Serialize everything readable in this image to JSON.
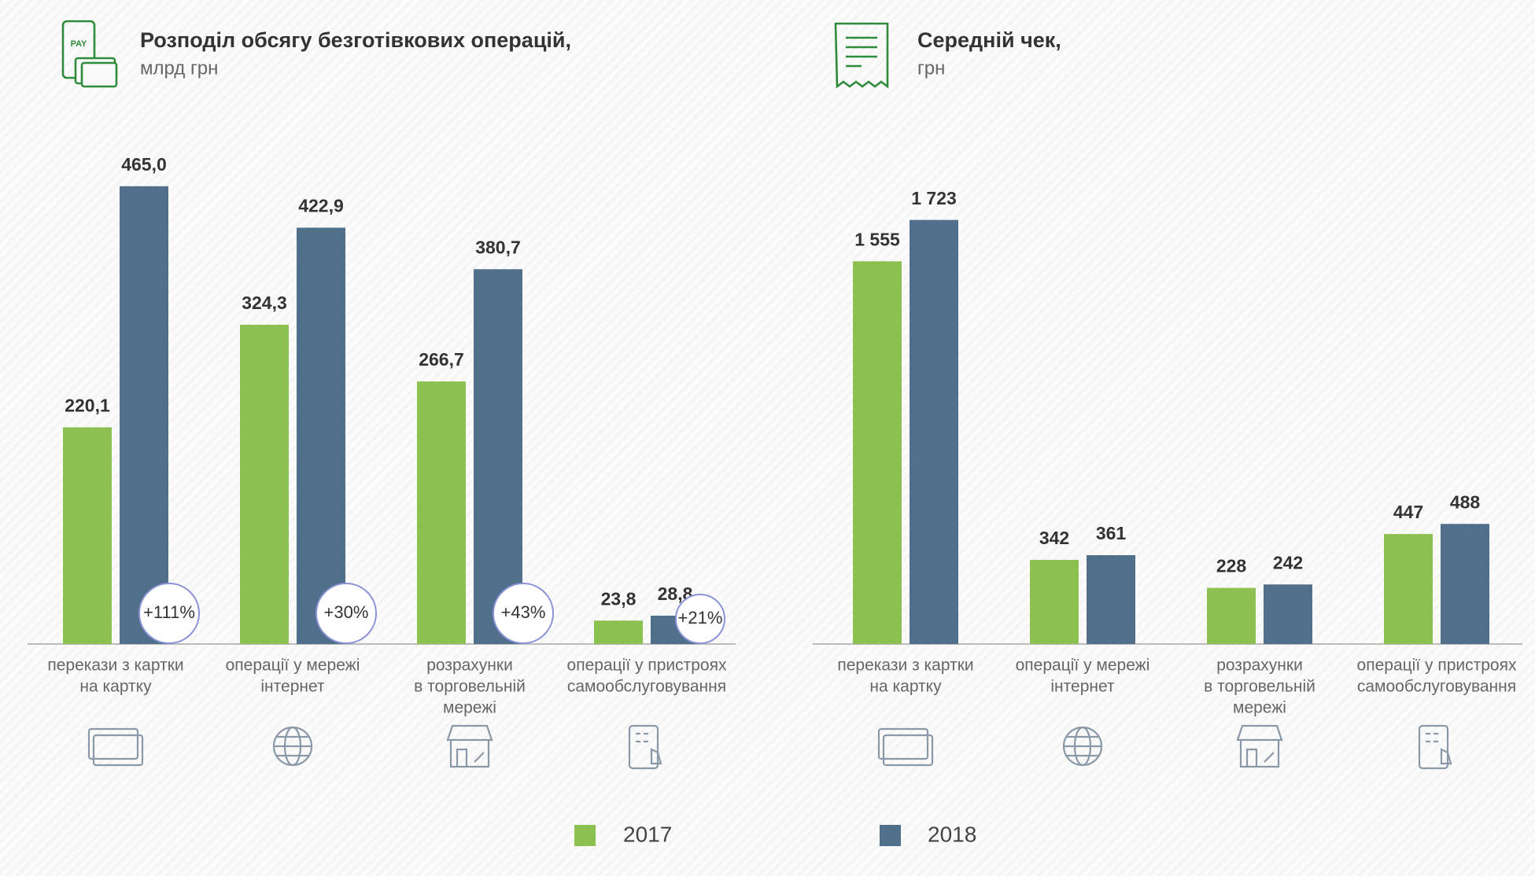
{
  "chart_data": [
    {
      "type": "bar",
      "title": "Розподіл обсягу безготівкових операцій,",
      "subtitle": "млрд грн",
      "categories": [
        [
          "перекази з картки",
          "на картку"
        ],
        [
          "операції у мережі",
          "інтернет"
        ],
        [
          "розрахунки",
          "в торговельній",
          "мережі"
        ],
        [
          "операції у пристроях",
          "самообслуговування"
        ]
      ],
      "series": [
        {
          "name": "2017",
          "color": "#8cc152",
          "values": [
            220.1,
            324.3,
            266.7,
            23.8
          ],
          "value_labels": [
            "220,1",
            "324,3",
            "266,7",
            "23,8"
          ]
        },
        {
          "name": "2018",
          "color": "#4f6f8a",
          "values": [
            465.0,
            422.9,
            380.7,
            28.8
          ],
          "value_labels": [
            "465,0",
            "422,9",
            "380,7",
            "28,8"
          ]
        }
      ],
      "annotations": [
        "+111%",
        "+30%",
        "+43%",
        "+21%"
      ],
      "ylim": [
        0,
        500
      ]
    },
    {
      "type": "bar",
      "title": "Середній чек,",
      "subtitle": "грн",
      "categories": [
        [
          "перекази з картки",
          "на картку"
        ],
        [
          "операції у мережі",
          "інтернет"
        ],
        [
          "розрахунки",
          "в торговельній",
          "мережі"
        ],
        [
          "операції у пристроях",
          "самообслуговування"
        ]
      ],
      "series": [
        {
          "color": "#8cc152",
          "values": [
            1555,
            342,
            228,
            447
          ],
          "value_labels": [
            "1 555",
            "342",
            "228",
            "447"
          ]
        },
        {
          "color": "#4f6f8a",
          "values": [
            1723,
            361,
            242,
            488
          ],
          "value_labels": [
            "1 723",
            "361",
            "242",
            "488"
          ]
        }
      ],
      "ylim": [
        0,
        2000
      ]
    }
  ]
}
